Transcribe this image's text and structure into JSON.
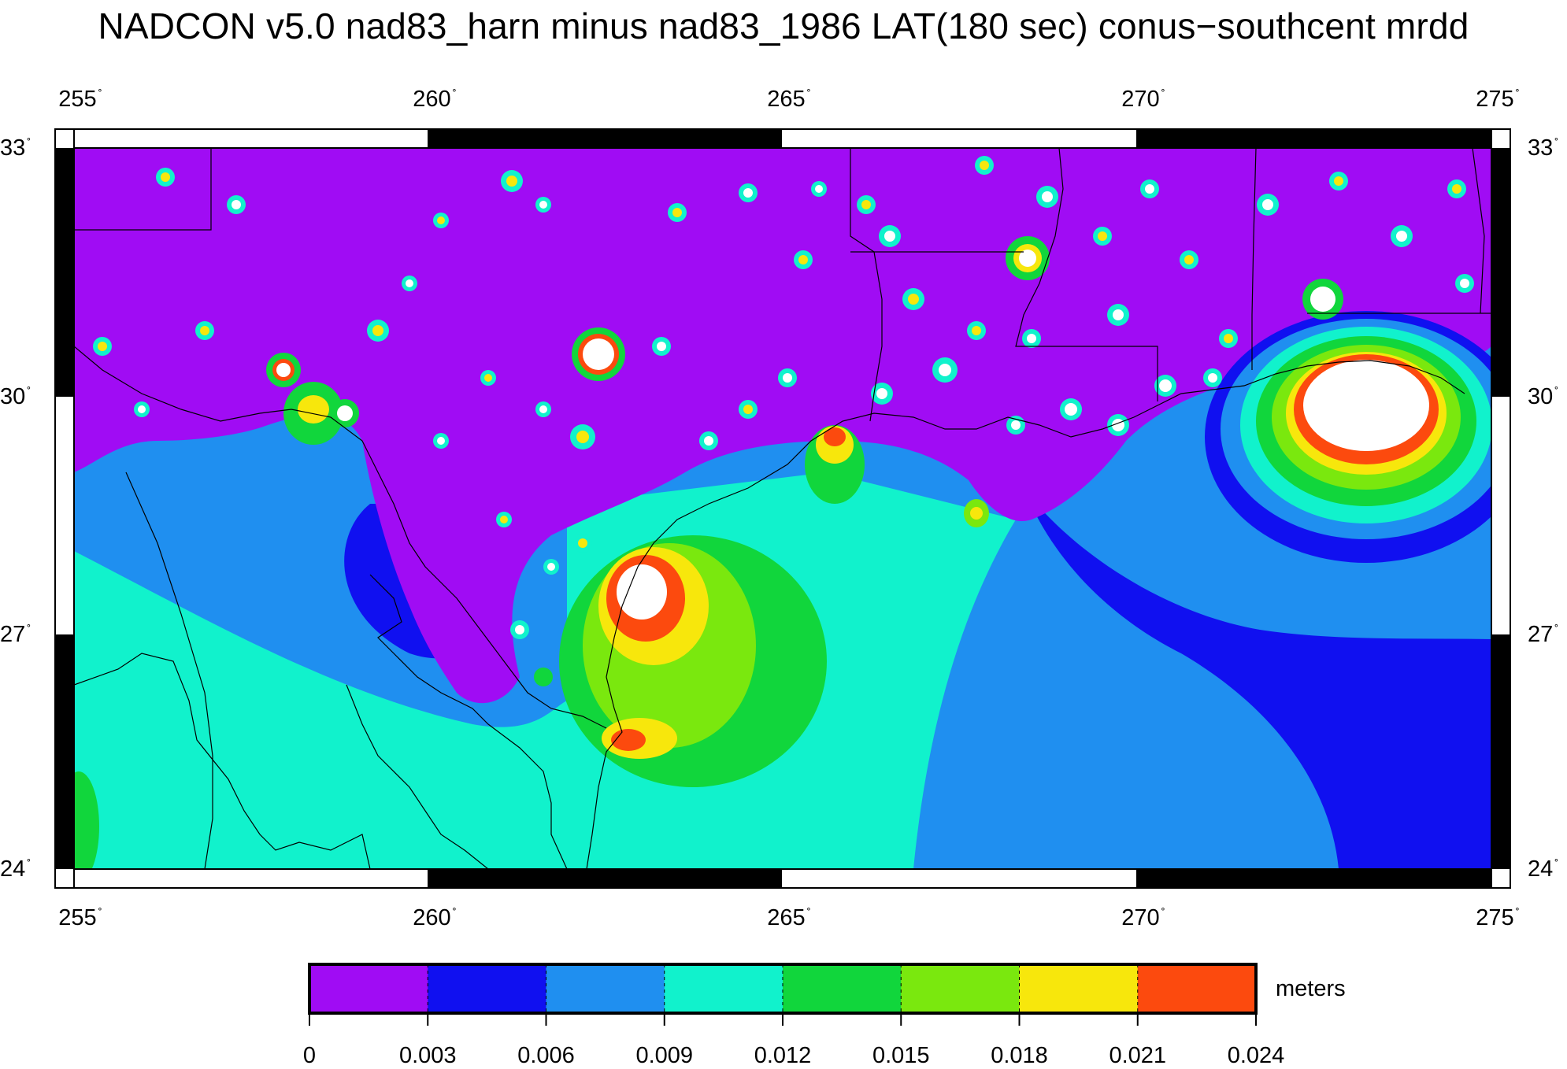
{
  "title": "NADCON v5.0 nad83_harn minus nad83_1986 LAT(180 sec) conus−southcent mrdd",
  "map": {
    "x_ticks": [
      "255",
      "260",
      "265",
      "270",
      "275"
    ],
    "y_ticks": [
      "33",
      "30",
      "27",
      "24"
    ],
    "degree_symbol": "˚"
  },
  "colorbar": {
    "unit": "meters",
    "ticks": [
      "0",
      "0.003",
      "0.006",
      "0.009",
      "0.012",
      "0.015",
      "0.018",
      "0.021",
      "0.024"
    ],
    "colors": [
      "#a00cf4",
      "#1010f0",
      "#1f8ff0",
      "#11f2cc",
      "#11d63c",
      "#7ae80e",
      "#f7e70c",
      "#fc4a0e"
    ]
  },
  "colors": {
    "band_0_003": "#a00cf4",
    "band_003_006": "#1010f0",
    "band_006_009": "#1f8ff0",
    "band_009_012": "#11f2cc",
    "band_012_015": "#11d63c",
    "band_015_018": "#7ae80e",
    "band_018_021": "#f7e70c",
    "band_021_024": "#fc4a0e",
    "above_max": "#ffffff"
  }
}
